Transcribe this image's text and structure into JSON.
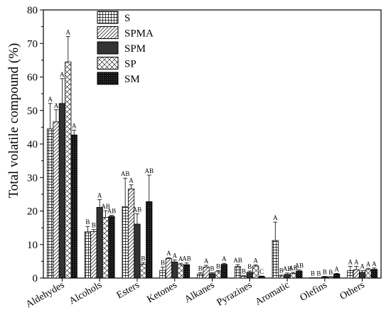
{
  "chart_data": {
    "type": "bar",
    "ylabel": "Total volatile compound (%)",
    "xlabel": "",
    "ylim": [
      0,
      80
    ],
    "yticks": [
      0,
      10,
      20,
      30,
      40,
      50,
      60,
      70,
      80
    ],
    "categories": [
      "Aldehydes",
      "Alcohols",
      "Esters",
      "Ketones",
      "Alkanes",
      "Pyrazines",
      "Aromatic",
      "Olefins",
      "Others"
    ],
    "legend_position": "top-center",
    "series": [
      {
        "name": "S",
        "pattern": "grid",
        "values": [
          44.5,
          13.8,
          21.3,
          2.3,
          1.2,
          3.4,
          11.2,
          0.1,
          2.2
        ],
        "errors": [
          7.6,
          1.6,
          8.5,
          1.0,
          0.4,
          0.6,
          5.5,
          0.0,
          1.3
        ],
        "letters": [
          "A",
          "B",
          "AB",
          "B",
          "B",
          "AB",
          "A",
          "B",
          "A"
        ]
      },
      {
        "name": "SPMA",
        "pattern": "diagonal",
        "values": [
          46.6,
          13.9,
          26.6,
          5.8,
          3.3,
          0.5,
          0.6,
          0.1,
          2.5
        ],
        "errors": [
          3.6,
          0.6,
          1.2,
          0.3,
          0.5,
          0.2,
          0.3,
          0.0,
          1.0
        ],
        "letters": [
          "A",
          "B",
          "A",
          "A",
          "A",
          "B",
          "B",
          "B",
          "A"
        ]
      },
      {
        "name": "SPM",
        "pattern": "solid-dark",
        "values": [
          52.1,
          21.1,
          16.1,
          4.8,
          1.3,
          1.7,
          1.1,
          0.4,
          1.7
        ],
        "errors": [
          7.4,
          2.3,
          3.1,
          0.6,
          0.3,
          0.4,
          0.4,
          0.1,
          0.5
        ],
        "letters": [
          "A",
          "A",
          "AB",
          "A",
          "B",
          "B",
          "AB",
          "B",
          "A"
        ]
      },
      {
        "name": "SP",
        "pattern": "cross",
        "values": [
          64.5,
          18.1,
          4.1,
          4.0,
          1.9,
          3.6,
          1.4,
          0.3,
          2.5
        ],
        "errors": [
          7.6,
          2.0,
          0.5,
          0.4,
          0.3,
          0.3,
          0.3,
          0.1,
          0.4
        ],
        "letters": [
          "A",
          "AB",
          "B",
          "A",
          "B",
          "A",
          "AB",
          "B",
          "A"
        ]
      },
      {
        "name": "SM",
        "pattern": "dotted-black",
        "values": [
          42.7,
          18.4,
          22.8,
          4.0,
          4.1,
          0.5,
          2.1,
          1.2,
          2.6
        ],
        "errors": [
          1.4,
          0.3,
          7.9,
          0.5,
          0.3,
          0.1,
          0.3,
          0.2,
          0.4
        ],
        "letters": [
          "A",
          "AB",
          "AB",
          "AB",
          "A",
          "C",
          "AB",
          "A",
          "A"
        ]
      }
    ]
  }
}
